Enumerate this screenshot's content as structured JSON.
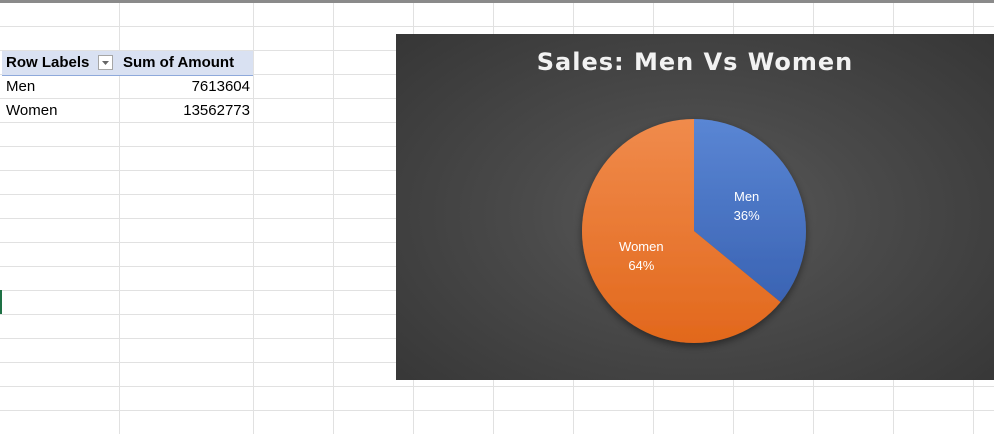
{
  "pivot": {
    "header": {
      "row_labels": "Row Labels",
      "sum_of_amount": "Sum of Amount"
    },
    "rows": [
      {
        "label": "Men",
        "value": "7613604"
      },
      {
        "label": "Women",
        "value": "13562773"
      }
    ],
    "filter_icon": "dropdown-arrow-icon"
  },
  "chart_data": {
    "type": "pie",
    "title": "Sales: Men Vs Women",
    "categories": [
      "Men",
      "Women"
    ],
    "values": [
      7613604,
      13562773
    ],
    "percent_labels": [
      "36%",
      "64%"
    ],
    "colors": [
      "#4472c4",
      "#ed7d31"
    ],
    "background": "#404040",
    "legend": "none",
    "data_labels": "inside"
  }
}
